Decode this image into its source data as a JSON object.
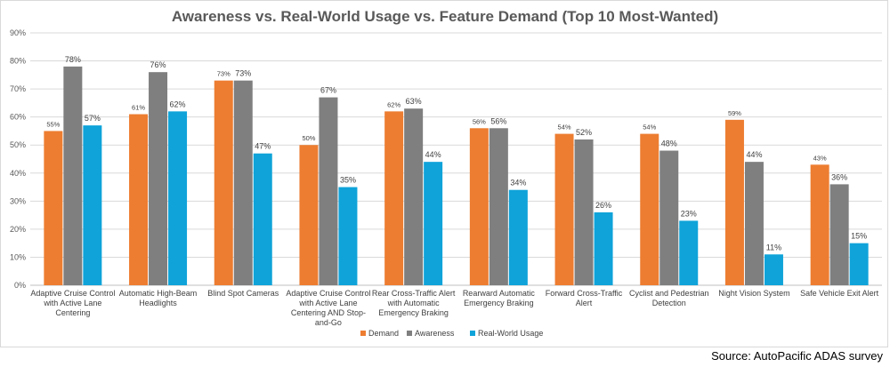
{
  "chart_data": {
    "type": "bar",
    "title": "Awareness vs. Real-World Usage vs. Feature Demand (Top 10 Most-Wanted)",
    "xlabel": "",
    "ylabel": "",
    "ylim": [
      0,
      90
    ],
    "yticks": [
      "0%",
      "10%",
      "20%",
      "30%",
      "40%",
      "50%",
      "60%",
      "70%",
      "80%",
      "90%"
    ],
    "grid": true,
    "legend_position": "bottom",
    "categories": [
      [
        "Adaptive Cruise Control",
        "with Active Lane",
        "Centering"
      ],
      [
        "Automatic High-Beam",
        "Headlights"
      ],
      [
        "Blind Spot Cameras"
      ],
      [
        "Adaptive Cruise Control",
        "with Active Lane",
        "Centering AND Stop-",
        "and-Go"
      ],
      [
        "Rear Cross-Traffic Alert",
        "with Automatic",
        "Emergency Braking"
      ],
      [
        "Rearward Automatic",
        "Emergency Braking"
      ],
      [
        "Forward Cross-Traffic",
        "Alert"
      ],
      [
        "Cyclist and Pedestrian",
        "Detection"
      ],
      [
        "Night Vision System"
      ],
      [
        "Safe Vehicle Exit Alert"
      ]
    ],
    "series": [
      {
        "name": "Demand",
        "color": "#ed7d31",
        "values": [
          55,
          61,
          73,
          50,
          62,
          56,
          54,
          54,
          59,
          43
        ],
        "labels": [
          "55%",
          "61%",
          "73%",
          "50%",
          "62%",
          "56%",
          "54%",
          "54%",
          "59%",
          "43%"
        ]
      },
      {
        "name": "Awareness",
        "color": "#7f7f7f",
        "values": [
          78,
          76,
          73,
          67,
          63,
          56,
          52,
          48,
          44,
          36
        ],
        "labels": [
          "78%",
          "76%",
          "73%",
          "67%",
          "63%",
          "56%",
          "52%",
          "48%",
          "44%",
          "36%"
        ]
      },
      {
        "name": "Real-World Usage",
        "color": "#0fa3d9",
        "values": [
          57,
          62,
          47,
          35,
          44,
          34,
          26,
          23,
          11,
          15
        ],
        "labels": [
          "57%",
          "62%",
          "47%",
          "35%",
          "44%",
          "34%",
          "26%",
          "23%",
          "11%",
          "15%"
        ]
      }
    ]
  },
  "source": "Source: AutoPacific ADAS survey"
}
